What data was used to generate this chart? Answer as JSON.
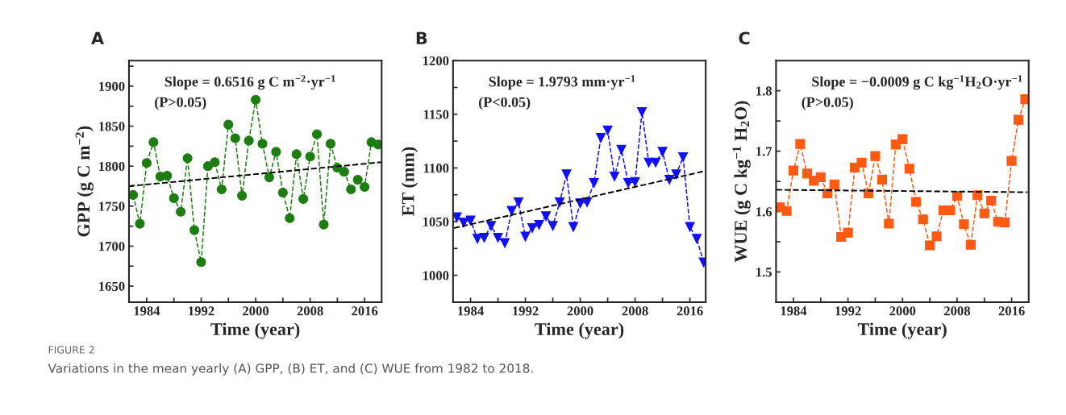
{
  "chart_data": [
    {
      "type": "line",
      "title": "A",
      "xlabel": "Time (year)",
      "ylabel": "GPP (g C m$^{−2}$)",
      "x": [
        1982,
        1983,
        1984,
        1985,
        1986,
        1987,
        1988,
        1989,
        1990,
        1991,
        1992,
        1993,
        1994,
        1995,
        1996,
        1997,
        1998,
        1999,
        2000,
        2001,
        2002,
        2003,
        2004,
        2005,
        2006,
        2007,
        2008,
        2009,
        2010,
        2011,
        2012,
        2013,
        2014,
        2015,
        2016,
        2017,
        2018
      ],
      "series": [
        {
          "color": "#1e7d12",
          "marker": "circle",
          "line_style": "dashed",
          "values": [
            1764,
            1728,
            1804,
            1830,
            1787,
            1788,
            1760,
            1743,
            1810,
            1720,
            1680,
            1800,
            1805,
            1771,
            1852,
            1835,
            1763,
            1832,
            1883,
            1828,
            1786,
            1818,
            1767,
            1735,
            1815,
            1759,
            1812,
            1840,
            1727,
            1828,
            1798,
            1793,
            1771,
            1783,
            1774,
            1830,
            1827
          ]
        },
        {
          "type": "line",
          "color": "#000000",
          "marker": "none",
          "line_style": "dashed",
          "x": [
            1981.4,
            2018.5
          ],
          "values": [
            1775,
            1805
          ]
        }
      ],
      "xlim": [
        1981.4,
        2018.5
      ],
      "ylim": [
        1630,
        1932
      ],
      "xticks": [
        1984,
        {
          "value": 1988,
          "label": null
        },
        1992,
        {
          "value": 1996,
          "label": null
        },
        2000,
        {
          "value": 2004,
          "label": null
        },
        2008,
        {
          "value": 2012,
          "label": null
        },
        2016
      ],
      "yticks": [
        1650,
        {
          "value": 1675,
          "label": null
        },
        1700,
        {
          "value": 1725,
          "label": null
        },
        1750,
        {
          "value": 1775,
          "label": null
        },
        1800,
        {
          "value": 1825,
          "label": null
        },
        1850,
        {
          "value": 1875,
          "label": null
        },
        1900,
        {
          "value": 1925,
          "label": null
        }
      ],
      "annotations": [
        "Slope = 0.6516 g C m$^{−2}$·yr$^{−1}$",
        "(P>0.05)",
        "FIGURE 2",
        "Variations in the mean yearly (A) GPP, (B) ET, and (C) WUE from 1982 to 2018."
      ],
      "grid": false,
      "legend": false
    },
    {
      "type": "line",
      "title": "B",
      "xlabel": "Time (year)",
      "ylabel": "ET (mm)",
      "x": [
        1982,
        1983,
        1984,
        1985,
        1986,
        1987,
        1988,
        1989,
        1990,
        1991,
        1992,
        1993,
        1994,
        1995,
        1996,
        1997,
        1998,
        1999,
        2000,
        2001,
        2002,
        2003,
        2004,
        2005,
        2006,
        2007,
        2008,
        2009,
        2010,
        2011,
        2012,
        2013,
        2014,
        2015,
        2016,
        2017,
        2018
      ],
      "series": [
        {
          "color": "#1010f0",
          "marker": "triangle",
          "line_style": "dashed",
          "values": [
            1054,
            1049,
            1051,
            1034,
            1035,
            1046,
            1035,
            1030,
            1060,
            1068,
            1036,
            1044,
            1047,
            1055,
            1046,
            1068,
            1094,
            1045,
            1067,
            1068,
            1086,
            1128,
            1135,
            1092,
            1117,
            1086,
            1087,
            1152,
            1105,
            1105,
            1115,
            1089,
            1094,
            1110,
            1045,
            1034,
            1012
          ]
        },
        {
          "type": "line",
          "color": "#000000",
          "marker": "none",
          "line_style": "dashed",
          "x": [
            1981.6,
            2018.1
          ],
          "values": [
            1044,
            1097
          ]
        }
      ],
      "xlim": [
        1981.45,
        2018.3
      ],
      "ylim": [
        975,
        1200
      ],
      "xticks": [
        1984,
        {
          "value": 1988,
          "label": null
        },
        1992,
        {
          "value": 1996,
          "label": null
        },
        2000,
        {
          "value": 2004,
          "label": null
        },
        2008,
        {
          "value": 2012,
          "label": null
        },
        2016
      ],
      "yticks": [
        1000,
        {
          "value": 1025,
          "label": null
        },
        1050,
        {
          "value": 1075,
          "label": null
        },
        1100,
        {
          "value": 1125,
          "label": null
        },
        1150,
        {
          "value": 1175,
          "label": null
        },
        1200
      ],
      "annotations": [
        "Slope = 1.9793 mm·yr$^{−1}$",
        "(P<0.05)"
      ],
      "grid": false,
      "legend": false
    },
    {
      "type": "line",
      "title": "C",
      "xlabel": "Time (year)",
      "ylabel": "WUE (g C kg$^{−1}$ H$_{2}$O)",
      "x": [
        1982,
        1983,
        1984,
        1985,
        1986,
        1987,
        1988,
        1989,
        1990,
        1991,
        1992,
        1993,
        1994,
        1995,
        1996,
        1997,
        1998,
        1999,
        2000,
        2001,
        2002,
        2003,
        2004,
        2005,
        2006,
        2007,
        2008,
        2009,
        2010,
        2011,
        2012,
        2013,
        2014,
        2015,
        2016,
        2017,
        2018
      ],
      "series": [
        {
          "color": "#ff5a14",
          "marker": "square",
          "line_style": "dashed",
          "values": [
            1.607,
            1.601,
            1.668,
            1.712,
            1.663,
            1.651,
            1.657,
            1.63,
            1.645,
            1.558,
            1.565,
            1.673,
            1.681,
            1.63,
            1.692,
            1.653,
            1.58,
            1.711,
            1.72,
            1.671,
            1.616,
            1.587,
            1.544,
            1.559,
            1.602,
            1.602,
            1.626,
            1.579,
            1.545,
            1.627,
            1.597,
            1.618,
            1.583,
            1.582,
            1.684,
            1.752,
            1.786
          ]
        },
        {
          "type": "line",
          "color": "#000000",
          "marker": "none",
          "line_style": "dashed",
          "x": [
            1981.5,
            2018.3
          ],
          "values": [
            1.636,
            1.632
          ]
        }
      ],
      "xlim": [
        1981.45,
        2018.5
      ],
      "ylim": [
        1.45,
        1.85
      ],
      "xticks": [
        1984,
        {
          "value": 1988,
          "label": null
        },
        1992,
        {
          "value": 1996,
          "label": null
        },
        2000,
        {
          "value": 2004,
          "label": null
        },
        2008,
        {
          "value": 2012,
          "label": null
        },
        2016
      ],
      "yticks": [
        1.5,
        {
          "value": 1.55,
          "label": null
        },
        1.6,
        {
          "value": 1.65,
          "label": null
        },
        1.7,
        {
          "value": 1.75,
          "label": null
        },
        1.8
      ],
      "annotations": [
        "Slope = −0.0009 g C kg$^{−1}$H$_{2}$O·yr$^{−1}$",
        "(P>0.05)"
      ],
      "grid": false,
      "legend": false
    }
  ]
}
